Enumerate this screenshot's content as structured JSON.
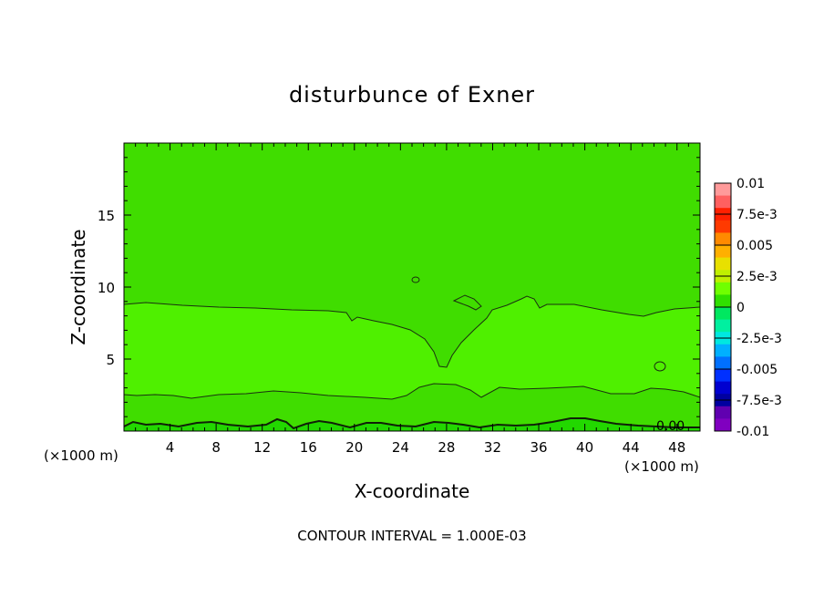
{
  "chart_data": {
    "type": "contour",
    "title": "disturbunce of Exner",
    "xlabel": "X-coordinate",
    "ylabel": "Z-coordinate",
    "x_unit": "(×1000 m)",
    "x_unit_right": "(×1000 m)",
    "footer": "CONTOUR INTERVAL = 1.000E-03",
    "xlim": [
      0,
      50
    ],
    "ylim": [
      0,
      20
    ],
    "xticks": [
      "4",
      "8",
      "12",
      "16",
      "20",
      "24",
      "28",
      "32",
      "36",
      "40",
      "44",
      "48"
    ],
    "yticks": [
      "5",
      "10",
      "15"
    ],
    "contour_label": "0.00",
    "colorbar": {
      "labels": [
        "0.01",
        "7.5e-3",
        "0.005",
        "2.5e-3",
        "0",
        "-2.5e-3",
        "-0.005",
        "-7.5e-3",
        "-0.01"
      ],
      "colors": [
        "#ff9a9a",
        "#ff6060",
        "#ff2000",
        "#ff3a00",
        "#ff8a00",
        "#ffb000",
        "#e8e000",
        "#c0f000",
        "#70ff00",
        "#30e000",
        "#00e860",
        "#00f0a0",
        "#00e8e0",
        "#00b0ff",
        "#0070ff",
        "#0030ff",
        "#0000d0",
        "#0000a0",
        "#6000b0",
        "#8000c0"
      ]
    },
    "regions": [
      {
        "name": "upper",
        "color": "#40dd00"
      },
      {
        "name": "middle",
        "color": "#4ff000"
      },
      {
        "name": "lower",
        "color": "#40dd00"
      },
      {
        "name": "surface",
        "color": "#22d800"
      }
    ]
  }
}
